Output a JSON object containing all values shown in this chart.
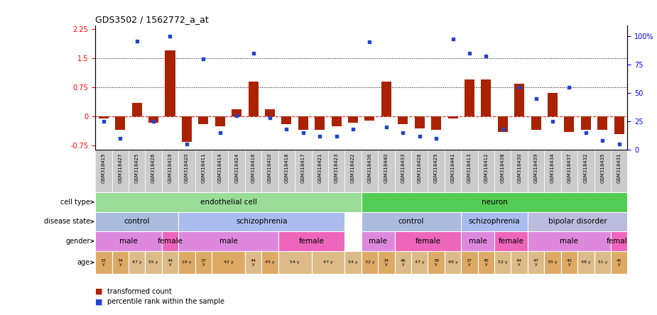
{
  "title": "GDS3502 / 1562772_a_at",
  "samples": [
    "GSM318415",
    "GSM318427",
    "GSM318425",
    "GSM318426",
    "GSM318419",
    "GSM318420",
    "GSM318411",
    "GSM318414",
    "GSM318424",
    "GSM318416",
    "GSM318410",
    "GSM318418",
    "GSM318417",
    "GSM318421",
    "GSM318423",
    "GSM318422",
    "GSM318436",
    "GSM318440",
    "GSM318433",
    "GSM318428",
    "GSM318429",
    "GSM318441",
    "GSM318413",
    "GSM318412",
    "GSM318438",
    "GSM318430",
    "GSM318439",
    "GSM318434",
    "GSM318437",
    "GSM318432",
    "GSM318435",
    "GSM318431"
  ],
  "bar_values": [
    -0.05,
    -0.35,
    0.35,
    -0.15,
    1.7,
    -0.65,
    -0.2,
    -0.25,
    0.18,
    0.9,
    0.18,
    -0.2,
    -0.35,
    -0.35,
    -0.25,
    -0.15,
    -0.1,
    0.9,
    -0.2,
    -0.3,
    -0.35,
    -0.05,
    0.95,
    0.95,
    -0.4,
    0.85,
    -0.35,
    0.6,
    -0.4,
    -0.35,
    -0.35,
    -0.45
  ],
  "dot_values": [
    25,
    10,
    96,
    25,
    100,
    5,
    80,
    15,
    30,
    85,
    28,
    18,
    15,
    12,
    12,
    18,
    95,
    20,
    15,
    12,
    10,
    98,
    85,
    83,
    18,
    55,
    45,
    25,
    55,
    15,
    8,
    5
  ],
  "ylim_left": [
    -0.85,
    2.35
  ],
  "ylim_right": [
    0,
    110
  ],
  "yticks_left": [
    -0.75,
    0,
    0.75,
    1.5,
    2.25
  ],
  "yticks_right": [
    0,
    25,
    50,
    75,
    100
  ],
  "hlines": [
    0.75,
    1.5
  ],
  "bar_color": "#aa2200",
  "dot_color": "#2244cc",
  "zero_line_color": "#cc2222",
  "sample_bg_color": "#cccccc",
  "cell_type_groups": [
    {
      "label": "endothelial cell",
      "start": 0,
      "end": 16,
      "color": "#99dd99"
    },
    {
      "label": "neuron",
      "start": 16,
      "end": 32,
      "color": "#55cc55"
    }
  ],
  "disease_groups": [
    {
      "label": "control",
      "start": 0,
      "end": 5,
      "color": "#aabbdd"
    },
    {
      "label": "schizophrenia",
      "start": 5,
      "end": 15,
      "color": "#aabbee"
    },
    {
      "label": "control",
      "start": 16,
      "end": 22,
      "color": "#aabbdd"
    },
    {
      "label": "schizophrenia",
      "start": 22,
      "end": 26,
      "color": "#aabbee"
    },
    {
      "label": "bipolar disorder",
      "start": 26,
      "end": 32,
      "color": "#bbbbdd"
    }
  ],
  "gender_groups": [
    {
      "label": "male",
      "start": 0,
      "end": 4,
      "color": "#dd88dd"
    },
    {
      "label": "female",
      "start": 4,
      "end": 5,
      "color": "#ee66bb"
    },
    {
      "label": "male",
      "start": 5,
      "end": 11,
      "color": "#dd88dd"
    },
    {
      "label": "female",
      "start": 11,
      "end": 15,
      "color": "#ee66bb"
    },
    {
      "label": "male",
      "start": 16,
      "end": 18,
      "color": "#dd88dd"
    },
    {
      "label": "female",
      "start": 18,
      "end": 22,
      "color": "#ee66bb"
    },
    {
      "label": "male",
      "start": 22,
      "end": 24,
      "color": "#dd88dd"
    },
    {
      "label": "female",
      "start": 24,
      "end": 26,
      "color": "#ee66bb"
    },
    {
      "label": "male",
      "start": 26,
      "end": 31,
      "color": "#dd88dd"
    },
    {
      "label": "female",
      "start": 31,
      "end": 32,
      "color": "#ee66bb"
    }
  ],
  "age_data": [
    {
      "label": "32\ny",
      "start": 0,
      "end": 1,
      "color": "#ddaa66"
    },
    {
      "label": "34\ny",
      "start": 1,
      "end": 2,
      "color": "#ddaa66"
    },
    {
      "label": "47 y",
      "start": 2,
      "end": 3,
      "color": "#ddbb88"
    },
    {
      "label": "55 y",
      "start": 3,
      "end": 4,
      "color": "#ddbb88"
    },
    {
      "label": "44\ny",
      "start": 4,
      "end": 5,
      "color": "#ddbb88"
    },
    {
      "label": "19 y",
      "start": 5,
      "end": 6,
      "color": "#ddaa66"
    },
    {
      "label": "37\ny",
      "start": 6,
      "end": 7,
      "color": "#ddaa66"
    },
    {
      "label": "42 y",
      "start": 7,
      "end": 9,
      "color": "#ddaa66"
    },
    {
      "label": "44\ny",
      "start": 9,
      "end": 10,
      "color": "#ddbb88"
    },
    {
      "label": "45 y",
      "start": 10,
      "end": 11,
      "color": "#ddaa66"
    },
    {
      "label": "54 y",
      "start": 11,
      "end": 13,
      "color": "#ddbb88"
    },
    {
      "label": "47 y",
      "start": 13,
      "end": 15,
      "color": "#ddbb88"
    },
    {
      "label": "54 y",
      "start": 15,
      "end": 16,
      "color": "#ddbb88"
    },
    {
      "label": "32 y",
      "start": 16,
      "end": 17,
      "color": "#ddaa66"
    },
    {
      "label": "34\ny",
      "start": 17,
      "end": 18,
      "color": "#ddaa66"
    },
    {
      "label": "46\ny",
      "start": 18,
      "end": 19,
      "color": "#ddbb88"
    },
    {
      "label": "47 y",
      "start": 19,
      "end": 20,
      "color": "#ddbb88"
    },
    {
      "label": "39\ny",
      "start": 20,
      "end": 21,
      "color": "#ddaa66"
    },
    {
      "label": "49 y",
      "start": 21,
      "end": 22,
      "color": "#ddbb88"
    },
    {
      "label": "37\ny",
      "start": 22,
      "end": 23,
      "color": "#ddaa66"
    },
    {
      "label": "45\ny",
      "start": 23,
      "end": 24,
      "color": "#ddaa66"
    },
    {
      "label": "52 y",
      "start": 24,
      "end": 25,
      "color": "#ddbb88"
    },
    {
      "label": "44\ny",
      "start": 25,
      "end": 26,
      "color": "#ddbb88"
    },
    {
      "label": "47\ny",
      "start": 26,
      "end": 27,
      "color": "#ddbb88"
    },
    {
      "label": "35 y",
      "start": 27,
      "end": 28,
      "color": "#ddaa66"
    },
    {
      "label": "42\ny",
      "start": 28,
      "end": 29,
      "color": "#ddaa66"
    },
    {
      "label": "48 y",
      "start": 29,
      "end": 30,
      "color": "#ddbb88"
    },
    {
      "label": "51 y",
      "start": 30,
      "end": 31,
      "color": "#ddbb88"
    },
    {
      "label": "41\ny",
      "start": 31,
      "end": 32,
      "color": "#ddaa66"
    }
  ],
  "legend_items": [
    {
      "color": "#aa2200",
      "label": "transformed count"
    },
    {
      "color": "#2244cc",
      "label": "percentile rank within the sample"
    }
  ]
}
